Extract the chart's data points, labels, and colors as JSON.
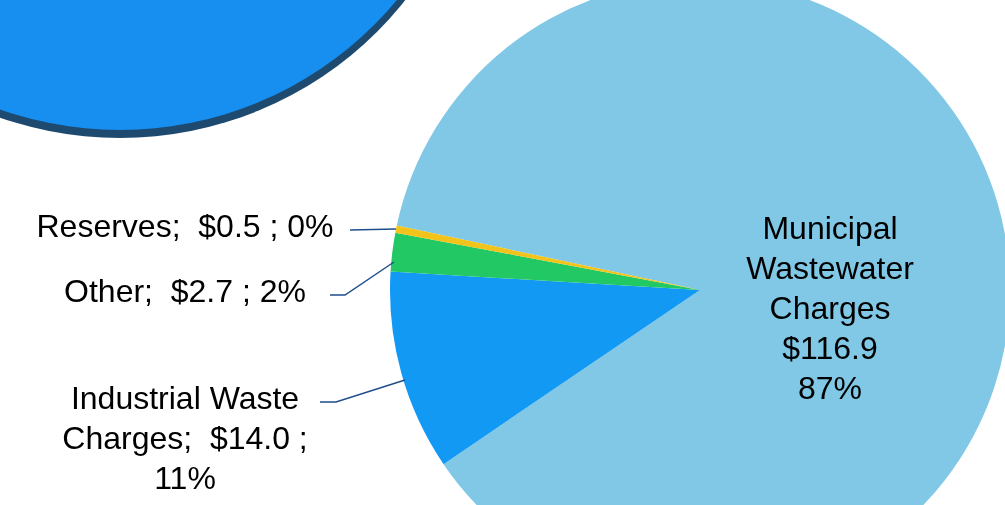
{
  "chart_data": {
    "type": "pie",
    "categories": [
      "Municipal Wastewater Charges",
      "Industrial Waste Charges",
      "Other",
      "Reserves"
    ],
    "values": [
      116.9,
      14.0,
      2.7,
      0.5
    ],
    "colors": [
      "#80c8e6",
      "#1299f4",
      "#22c864",
      "#f2c31a"
    ],
    "value_labels": [
      "\n$116.9\n87%",
      ";  $14.0 ;\n11%",
      ";  $2.7 ; 2%",
      ";  $0.5 ; 0%"
    ],
    "legend": false
  }
}
